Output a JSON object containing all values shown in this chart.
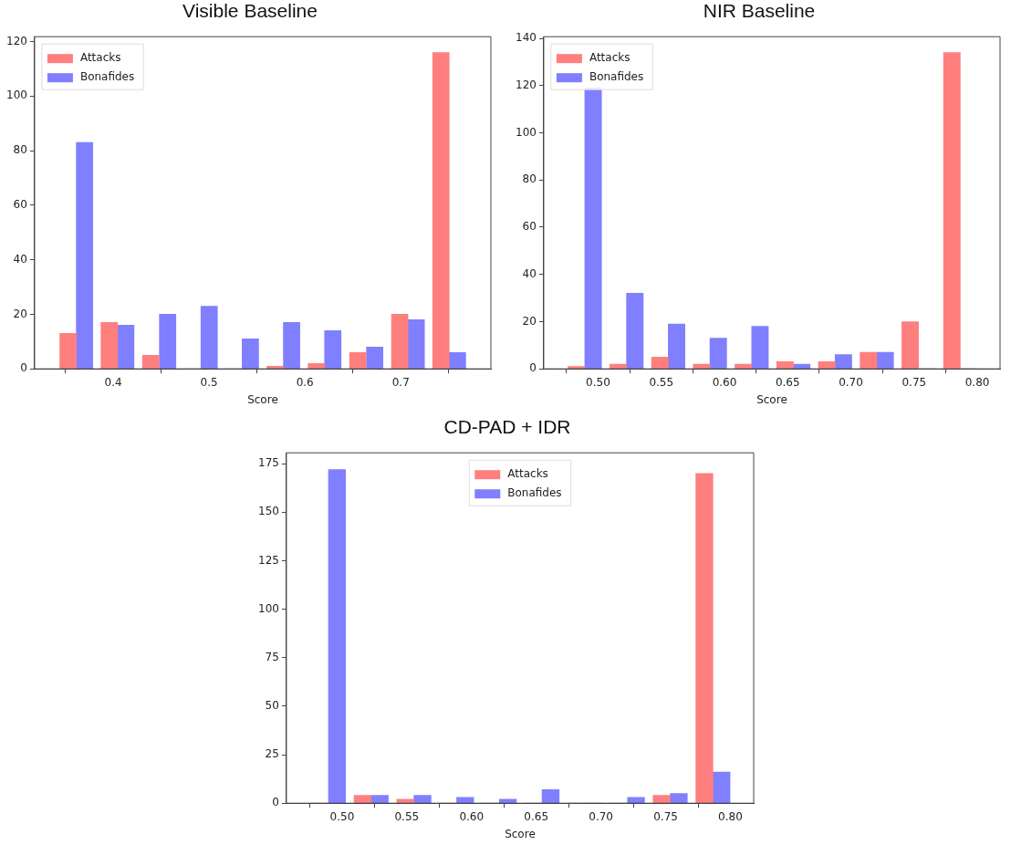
{
  "chart_data": [
    {
      "type": "histogram",
      "title": "Visible Baseline",
      "xlabel": "Score",
      "bins": [
        0.34,
        0.383,
        0.426,
        0.47,
        0.513,
        0.556,
        0.599,
        0.642,
        0.686,
        0.729,
        0.772
      ],
      "series": [
        {
          "name": "Attacks",
          "color": "#ff7f7f",
          "values": [
            13,
            17,
            5,
            0,
            0,
            1,
            2,
            6,
            20,
            116
          ]
        },
        {
          "name": "Bonafides",
          "color": "#7f7fff",
          "values": [
            83,
            16,
            20,
            23,
            11,
            17,
            14,
            8,
            18,
            6
          ]
        }
      ],
      "xlim": [
        0.318,
        0.794
      ],
      "xticks": [
        0.4,
        0.5,
        0.6,
        0.7
      ],
      "ylim": [
        0,
        121.8
      ],
      "yticks": [
        0,
        20,
        40,
        60,
        80,
        100,
        120
      ],
      "legend": "top left",
      "grid": false
    },
    {
      "type": "histogram",
      "title": "NIR Baseline",
      "xlabel": "Score",
      "bins": [
        0.473,
        0.506,
        0.539,
        0.572,
        0.605,
        0.638,
        0.671,
        0.704,
        0.737,
        0.77,
        0.803
      ],
      "series": [
        {
          "name": "Attacks",
          "color": "#ff7f7f",
          "values": [
            1,
            2,
            5,
            2,
            2,
            3,
            3,
            7,
            20,
            134
          ]
        },
        {
          "name": "Bonafides",
          "color": "#7f7fff",
          "values": [
            119,
            32,
            19,
            13,
            18,
            2,
            6,
            7,
            0,
            0
          ]
        }
      ],
      "xlim": [
        0.457,
        0.818
      ],
      "xticks": [
        {
          "value": 0.5,
          "label": "0.50"
        },
        {
          "value": 0.55,
          "label": "0.55"
        },
        {
          "value": 0.6,
          "label": "0.60"
        },
        {
          "value": 0.65,
          "label": "0.65"
        },
        {
          "value": 0.7,
          "label": "0.70"
        },
        {
          "value": 0.75,
          "label": "0.75"
        },
        {
          "value": 0.8,
          "label": "0.80"
        }
      ],
      "ylim": [
        0,
        140.7
      ],
      "yticks": [
        0,
        20,
        40,
        60,
        80,
        100,
        120,
        140
      ],
      "legend": "top left",
      "grid": false
    },
    {
      "type": "histogram",
      "title": "CD-PAD + IDR",
      "xlabel": "Score",
      "bins": [
        0.473,
        0.506,
        0.539,
        0.572,
        0.605,
        0.638,
        0.671,
        0.704,
        0.737,
        0.77,
        0.803
      ],
      "series": [
        {
          "name": "Attacks",
          "color": "#ff7f7f",
          "values": [
            0,
            4,
            2,
            0,
            0,
            0,
            0,
            0,
            4,
            170
          ]
        },
        {
          "name": "Bonafides",
          "color": "#7f7fff",
          "values": [
            172,
            4,
            4,
            3,
            2,
            7,
            0,
            3,
            5,
            16
          ]
        }
      ],
      "xlim": [
        0.457,
        0.818
      ],
      "xticks": [
        {
          "value": 0.5,
          "label": "0.50"
        },
        {
          "value": 0.55,
          "label": "0.55"
        },
        {
          "value": 0.6,
          "label": "0.60"
        },
        {
          "value": 0.65,
          "label": "0.65"
        },
        {
          "value": 0.7,
          "label": "0.70"
        },
        {
          "value": 0.75,
          "label": "0.75"
        },
        {
          "value": 0.8,
          "label": "0.80"
        }
      ],
      "ylim": [
        0,
        180.6
      ],
      "yticks": [
        0,
        25,
        50,
        75,
        100,
        125,
        150,
        175
      ],
      "legend": "top",
      "grid": false
    }
  ]
}
